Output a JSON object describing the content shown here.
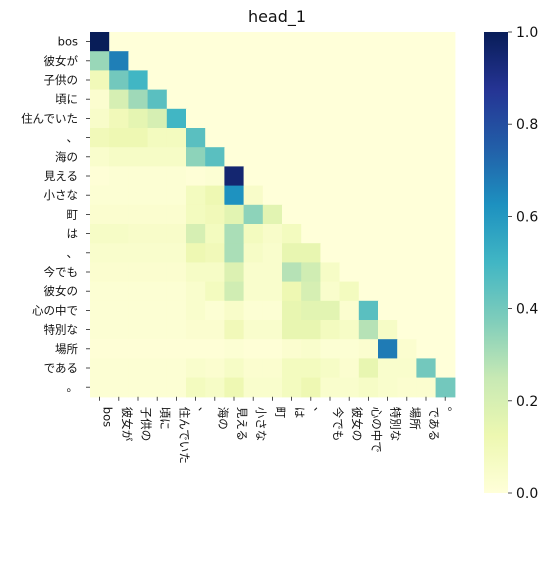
{
  "chart_data": {
    "type": "heatmap",
    "title": "head_1",
    "xlabel": "",
    "ylabel": "",
    "tokens": [
      "bos",
      "彼女が",
      "子供の",
      "頃に",
      "住んでいた",
      "、",
      "海の",
      "見える",
      "小さな",
      "町",
      "は",
      "、",
      "今でも",
      "彼女の",
      "心の中で",
      "特別な",
      "場所",
      "である",
      "。"
    ],
    "colormap": "YlGnBu",
    "value_range": [
      0,
      1
    ],
    "colorbar_ticks": [
      "0.0",
      "0.2",
      "0.4",
      "0.6",
      "0.8",
      "1.0"
    ],
    "matrix": [
      [
        1.0,
        0,
        0,
        0,
        0,
        0,
        0,
        0,
        0,
        0,
        0,
        0,
        0,
        0,
        0,
        0,
        0,
        0,
        0
      ],
      [
        0.33,
        0.67,
        0,
        0,
        0,
        0,
        0,
        0,
        0,
        0,
        0,
        0,
        0,
        0,
        0,
        0,
        0,
        0,
        0
      ],
      [
        0.1,
        0.4,
        0.5,
        0,
        0,
        0,
        0,
        0,
        0,
        0,
        0,
        0,
        0,
        0,
        0,
        0,
        0,
        0,
        0
      ],
      [
        0.03,
        0.2,
        0.32,
        0.45,
        0,
        0,
        0,
        0,
        0,
        0,
        0,
        0,
        0,
        0,
        0,
        0,
        0,
        0,
        0
      ],
      [
        0.05,
        0.1,
        0.15,
        0.2,
        0.5,
        0,
        0,
        0,
        0,
        0,
        0,
        0,
        0,
        0,
        0,
        0,
        0,
        0,
        0
      ],
      [
        0.1,
        0.12,
        0.12,
        0.08,
        0.08,
        0.45,
        0,
        0,
        0,
        0,
        0,
        0,
        0,
        0,
        0,
        0,
        0,
        0,
        0
      ],
      [
        0.04,
        0.06,
        0.06,
        0.06,
        0.06,
        0.35,
        0.45,
        0,
        0,
        0,
        0,
        0,
        0,
        0,
        0,
        0,
        0,
        0,
        0
      ],
      [
        0.01,
        0.02,
        0.02,
        0.02,
        0.02,
        0.01,
        0.02,
        0.95,
        0,
        0,
        0,
        0,
        0,
        0,
        0,
        0,
        0,
        0,
        0
      ],
      [
        0.02,
        0.02,
        0.02,
        0.02,
        0.02,
        0.08,
        0.12,
        0.62,
        0.05,
        0,
        0,
        0,
        0,
        0,
        0,
        0,
        0,
        0,
        0
      ],
      [
        0.03,
        0.03,
        0.03,
        0.03,
        0.03,
        0.08,
        0.1,
        0.16,
        0.35,
        0.16,
        0,
        0,
        0,
        0,
        0,
        0,
        0,
        0,
        0
      ],
      [
        0.06,
        0.06,
        0.05,
        0.05,
        0.05,
        0.2,
        0.08,
        0.3,
        0.08,
        0.05,
        0.08,
        0,
        0,
        0,
        0,
        0,
        0,
        0,
        0
      ],
      [
        0.04,
        0.04,
        0.04,
        0.04,
        0.04,
        0.12,
        0.1,
        0.3,
        0.06,
        0.04,
        0.14,
        0.14,
        0,
        0,
        0,
        0,
        0,
        0,
        0
      ],
      [
        0.03,
        0.03,
        0.03,
        0.03,
        0.03,
        0.06,
        0.06,
        0.18,
        0.04,
        0.04,
        0.28,
        0.22,
        0.06,
        0,
        0,
        0,
        0,
        0,
        0
      ],
      [
        0.02,
        0.02,
        0.02,
        0.02,
        0.02,
        0.04,
        0.08,
        0.22,
        0.04,
        0.04,
        0.12,
        0.2,
        0.04,
        0.08,
        0,
        0,
        0,
        0,
        0
      ],
      [
        0.02,
        0.02,
        0.02,
        0.02,
        0.02,
        0.04,
        0.02,
        0.05,
        0.02,
        0.02,
        0.14,
        0.16,
        0.16,
        0.03,
        0.45,
        0,
        0,
        0,
        0
      ],
      [
        0.02,
        0.02,
        0.02,
        0.02,
        0.02,
        0.03,
        0.03,
        0.1,
        0.04,
        0.04,
        0.14,
        0.14,
        0.08,
        0.06,
        0.28,
        0.06,
        0,
        0,
        0
      ],
      [
        0.01,
        0.01,
        0.01,
        0.01,
        0.01,
        0.01,
        0.01,
        0.02,
        0.01,
        0.01,
        0.03,
        0.04,
        0.02,
        0.02,
        0.03,
        0.68,
        0.03,
        0,
        0
      ],
      [
        0.02,
        0.02,
        0.02,
        0.02,
        0.02,
        0.04,
        0.03,
        0.06,
        0.03,
        0.03,
        0.08,
        0.08,
        0.06,
        0.03,
        0.14,
        0.04,
        0.04,
        0.4,
        0
      ],
      [
        0.02,
        0.02,
        0.02,
        0.02,
        0.02,
        0.08,
        0.06,
        0.12,
        0.04,
        0.04,
        0.08,
        0.12,
        0.04,
        0.04,
        0.06,
        0.04,
        0.03,
        0.03,
        0.4
      ]
    ]
  }
}
